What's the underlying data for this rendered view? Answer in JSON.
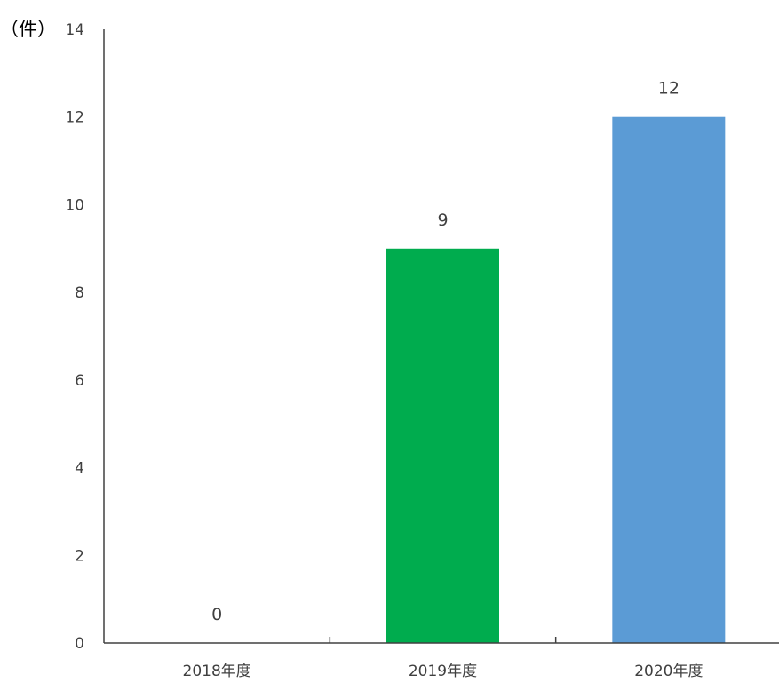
{
  "chart_data": {
    "type": "bar",
    "title": "",
    "xlabel": "",
    "ylabel": "（件）",
    "categories": [
      "2018年度",
      "2019年度",
      "2020年度"
    ],
    "values": [
      0,
      9,
      12
    ],
    "colors": [
      "#00ac4e",
      "#00ac4e",
      "#5b9bd5"
    ],
    "ylim": [
      0,
      14
    ],
    "yticks": [
      0,
      2,
      4,
      6,
      8,
      10,
      12,
      14
    ],
    "grid": false,
    "legend": "none",
    "axis_color": "#404040"
  }
}
